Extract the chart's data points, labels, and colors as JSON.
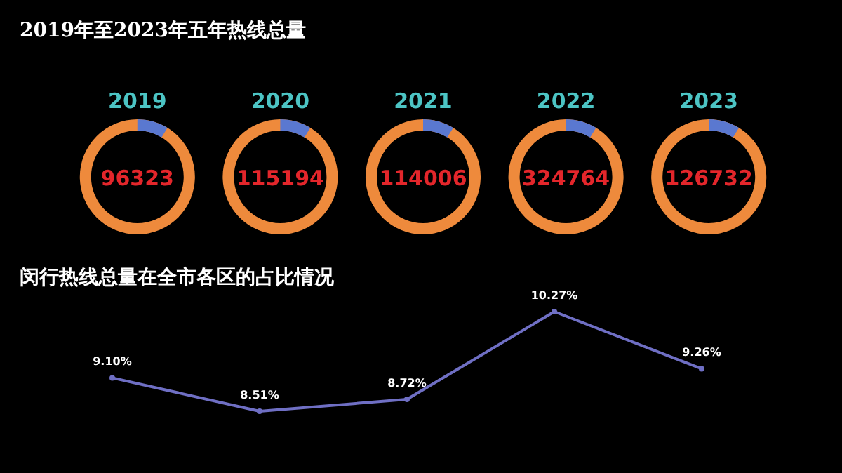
{
  "chart_data": [
    {
      "type": "other",
      "title": "2019年至2023年五年热线总量"
    },
    {
      "type": "other",
      "title": "2019",
      "annotations": [
        "96323"
      ]
    },
    {
      "type": "other",
      "title": "2020",
      "annotations": [
        "115194"
      ]
    },
    {
      "type": "other",
      "title": "2021",
      "annotations": [
        "114006"
      ]
    },
    {
      "type": "other",
      "title": "2022",
      "annotations": [
        "324764"
      ]
    },
    {
      "type": "other",
      "title": "2023",
      "annotations": [
        "126732"
      ]
    },
    {
      "type": "line",
      "title": "闵行热线总量在全市各区的占比情况",
      "categories": [
        null,
        null,
        null,
        null,
        null
      ],
      "marker": "circle",
      "line_style": "solid",
      "series": [
        {
          "color": "#6f6fc4",
          "values": [
            9.1,
            8.51,
            8.72,
            10.27,
            9.26
          ],
          "value_labels": [
            "9.10%",
            "8.51%",
            "8.72%",
            "10.27%",
            "9.26%"
          ]
        }
      ]
    }
  ]
}
